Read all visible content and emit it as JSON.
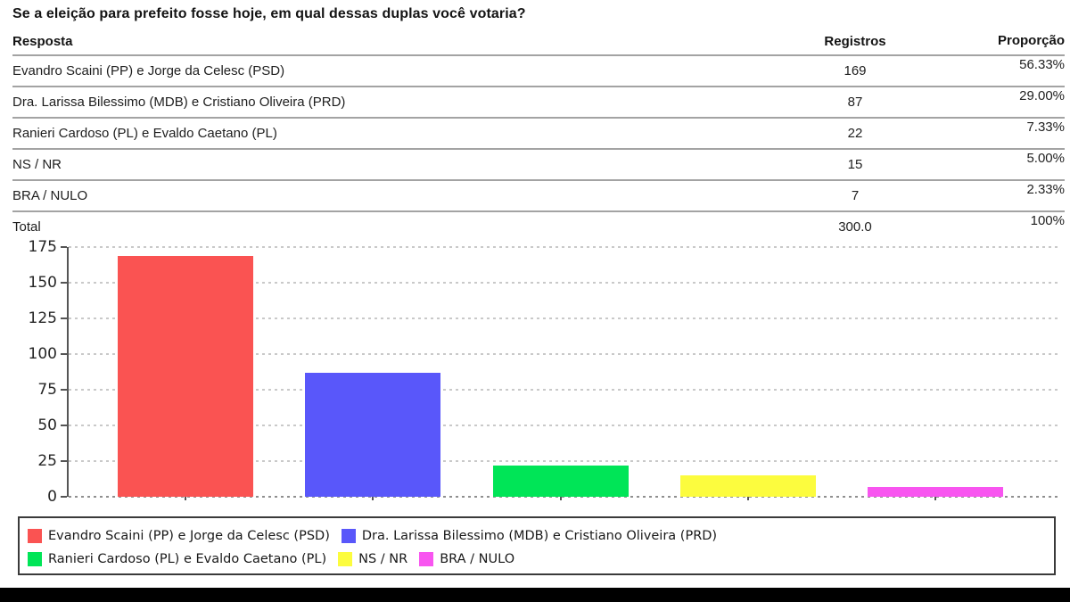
{
  "title": "Se a eleição para prefeito fosse hoje, em qual dessas duplas você votaria?",
  "table": {
    "headers": {
      "resposta": "Resposta",
      "registros": "Registros",
      "proporcao": "Proporção"
    },
    "rows": [
      {
        "resposta": "Evandro Scaini (PP) e Jorge da Celesc (PSD)",
        "registros": "169",
        "proporcao": "56.33%"
      },
      {
        "resposta": "Dra. Larissa Bilessimo (MDB) e Cristiano Oliveira (PRD)",
        "registros": "87",
        "proporcao": "29.00%"
      },
      {
        "resposta": "Ranieri Cardoso (PL) e Evaldo Caetano (PL)",
        "registros": "22",
        "proporcao": "7.33%"
      },
      {
        "resposta": "NS / NR",
        "registros": "15",
        "proporcao": "5.00%"
      },
      {
        "resposta": "BRA / NULO",
        "registros": "7",
        "proporcao": "2.33%"
      }
    ],
    "total": {
      "resposta": "Total",
      "registros": "300.0",
      "proporcao": "100%"
    }
  },
  "chart_data": {
    "type": "bar",
    "categories": [
      "Evandro Scaini (PP) e Jorge da Celesc (PSD)",
      "Dra. Larissa Bilessimo (MDB) e Cristiano Oliveira (PRD)",
      "Ranieri Cardoso (PL) e Evaldo Caetano (PL)",
      "NS / NR",
      "BRA / NULO"
    ],
    "values": [
      169,
      87,
      22,
      15,
      7
    ],
    "colors": [
      "#fa5352",
      "#5957fa",
      "#00e557",
      "#fcfc3e",
      "#f855f0"
    ],
    "title": "",
    "xlabel": "",
    "ylabel": "",
    "ylim": [
      0,
      175
    ],
    "yticks": [
      0,
      25,
      50,
      75,
      100,
      125,
      150,
      175
    ],
    "grid": "horizontal dashed",
    "legend_position": "bottom box, two rows",
    "legend_rows": [
      [
        0,
        1
      ],
      [
        2,
        3,
        4
      ]
    ],
    "axis_color": "#555555",
    "grid_color": "#c9c9c9"
  }
}
